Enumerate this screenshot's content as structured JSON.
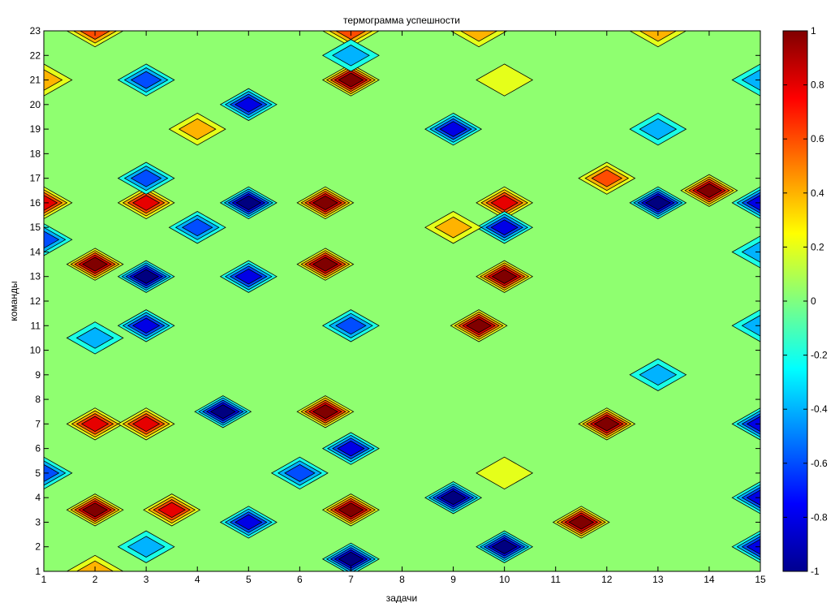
{
  "chart_data": {
    "type": "heatmap",
    "title": "термограмма успешности",
    "xlabel": "задачи",
    "ylabel": "команды",
    "x": [
      1,
      2,
      3,
      4,
      5,
      6,
      7,
      8,
      9,
      10,
      11,
      12,
      13,
      14,
      15
    ],
    "y": [
      1,
      2,
      3,
      4,
      5,
      6,
      7,
      8,
      9,
      10,
      11,
      12,
      13,
      14,
      15,
      16,
      17,
      18,
      19,
      20,
      21,
      22,
      23
    ],
    "xlim": [
      1,
      15
    ],
    "ylim": [
      1,
      23
    ],
    "colorbar": {
      "range": [
        -1,
        1
      ],
      "ticks": [
        -1,
        -0.8,
        -0.6,
        -0.4,
        -0.2,
        0,
        0.2,
        0.4,
        0.6,
        0.8,
        1
      ],
      "tick_labels": [
        "-1",
        "-0.8",
        "-0.6",
        "-0.4",
        "-0.2",
        "0",
        "0.2",
        "0.4",
        "0.6",
        "0.8",
        "1"
      ],
      "colormap": "jet"
    },
    "background_level": 0,
    "peaks": [
      {
        "x": 2,
        "y": 23,
        "value": 0.6
      },
      {
        "x": 7,
        "y": 23,
        "value": 0.6
      },
      {
        "x": 9.5,
        "y": 23,
        "value": 0.4
      },
      {
        "x": 13,
        "y": 23,
        "value": 0.3
      },
      {
        "x": 1,
        "y": 21,
        "value": 0.4
      },
      {
        "x": 3,
        "y": 21,
        "value": -0.6
      },
      {
        "x": 7,
        "y": 21,
        "value": 0.9
      },
      {
        "x": 7,
        "y": 22,
        "value": -0.3
      },
      {
        "x": 5,
        "y": 20,
        "value": -0.8
      },
      {
        "x": 10,
        "y": 21,
        "value": 0.2
      },
      {
        "x": 15,
        "y": 21,
        "value": -0.3
      },
      {
        "x": 4,
        "y": 19,
        "value": 0.4
      },
      {
        "x": 9,
        "y": 19,
        "value": -0.8
      },
      {
        "x": 13,
        "y": 19,
        "value": -0.3
      },
      {
        "x": 1,
        "y": 16,
        "value": 0.8
      },
      {
        "x": 3,
        "y": 16,
        "value": 0.8
      },
      {
        "x": 3,
        "y": 17,
        "value": -0.6
      },
      {
        "x": 1,
        "y": 14.5,
        "value": -0.6
      },
      {
        "x": 4,
        "y": 15,
        "value": -0.6
      },
      {
        "x": 5,
        "y": 16,
        "value": -0.9
      },
      {
        "x": 5,
        "y": 13,
        "value": -0.8
      },
      {
        "x": 6.5,
        "y": 16,
        "value": 0.9
      },
      {
        "x": 6.5,
        "y": 13.5,
        "value": 0.9
      },
      {
        "x": 10,
        "y": 16,
        "value": 0.7
      },
      {
        "x": 10,
        "y": 15,
        "value": -0.8
      },
      {
        "x": 12,
        "y": 17,
        "value": 0.5
      },
      {
        "x": 13,
        "y": 16,
        "value": -0.9
      },
      {
        "x": 14,
        "y": 16.5,
        "value": 0.9
      },
      {
        "x": 15,
        "y": 16,
        "value": -0.8
      },
      {
        "x": 2,
        "y": 13.5,
        "value": 0.9
      },
      {
        "x": 3,
        "y": 13,
        "value": -0.9
      },
      {
        "x": 9,
        "y": 15,
        "value": 0.3
      },
      {
        "x": 10,
        "y": 13,
        "value": 0.9
      },
      {
        "x": 15,
        "y": 14,
        "value": -0.3
      },
      {
        "x": 3,
        "y": 11,
        "value": -0.8
      },
      {
        "x": 7,
        "y": 11,
        "value": -0.5
      },
      {
        "x": 9.5,
        "y": 11,
        "value": 0.9
      },
      {
        "x": 15,
        "y": 11,
        "value": -0.3
      },
      {
        "x": 2,
        "y": 10.5,
        "value": -0.3
      },
      {
        "x": 2,
        "y": 7,
        "value": 0.8
      },
      {
        "x": 3,
        "y": 7,
        "value": 0.8
      },
      {
        "x": 4.5,
        "y": 7.5,
        "value": -0.9
      },
      {
        "x": 6.5,
        "y": 7.5,
        "value": 1.0
      },
      {
        "x": 7,
        "y": 6,
        "value": -0.8
      },
      {
        "x": 12,
        "y": 7,
        "value": 1.0
      },
      {
        "x": 13,
        "y": 9,
        "value": -0.4
      },
      {
        "x": 15,
        "y": 7,
        "value": -0.8
      },
      {
        "x": 1,
        "y": 5,
        "value": -0.6
      },
      {
        "x": 6,
        "y": 5,
        "value": -0.5
      },
      {
        "x": 10,
        "y": 5,
        "value": 0.2
      },
      {
        "x": 2,
        "y": 3.5,
        "value": 0.9
      },
      {
        "x": 3.5,
        "y": 3.5,
        "value": 0.8
      },
      {
        "x": 5,
        "y": 3,
        "value": -0.8
      },
      {
        "x": 7,
        "y": 3.5,
        "value": 0.9
      },
      {
        "x": 9,
        "y": 4,
        "value": -0.9
      },
      {
        "x": 11.5,
        "y": 3,
        "value": 0.9
      },
      {
        "x": 15,
        "y": 4,
        "value": -0.8
      },
      {
        "x": 3,
        "y": 2,
        "value": -0.4
      },
      {
        "x": 7,
        "y": 1.5,
        "value": -0.9
      },
      {
        "x": 10,
        "y": 2,
        "value": -0.9
      },
      {
        "x": 15,
        "y": 2,
        "value": -0.8
      },
      {
        "x": 2,
        "y": 1,
        "value": 0.3
      }
    ]
  }
}
